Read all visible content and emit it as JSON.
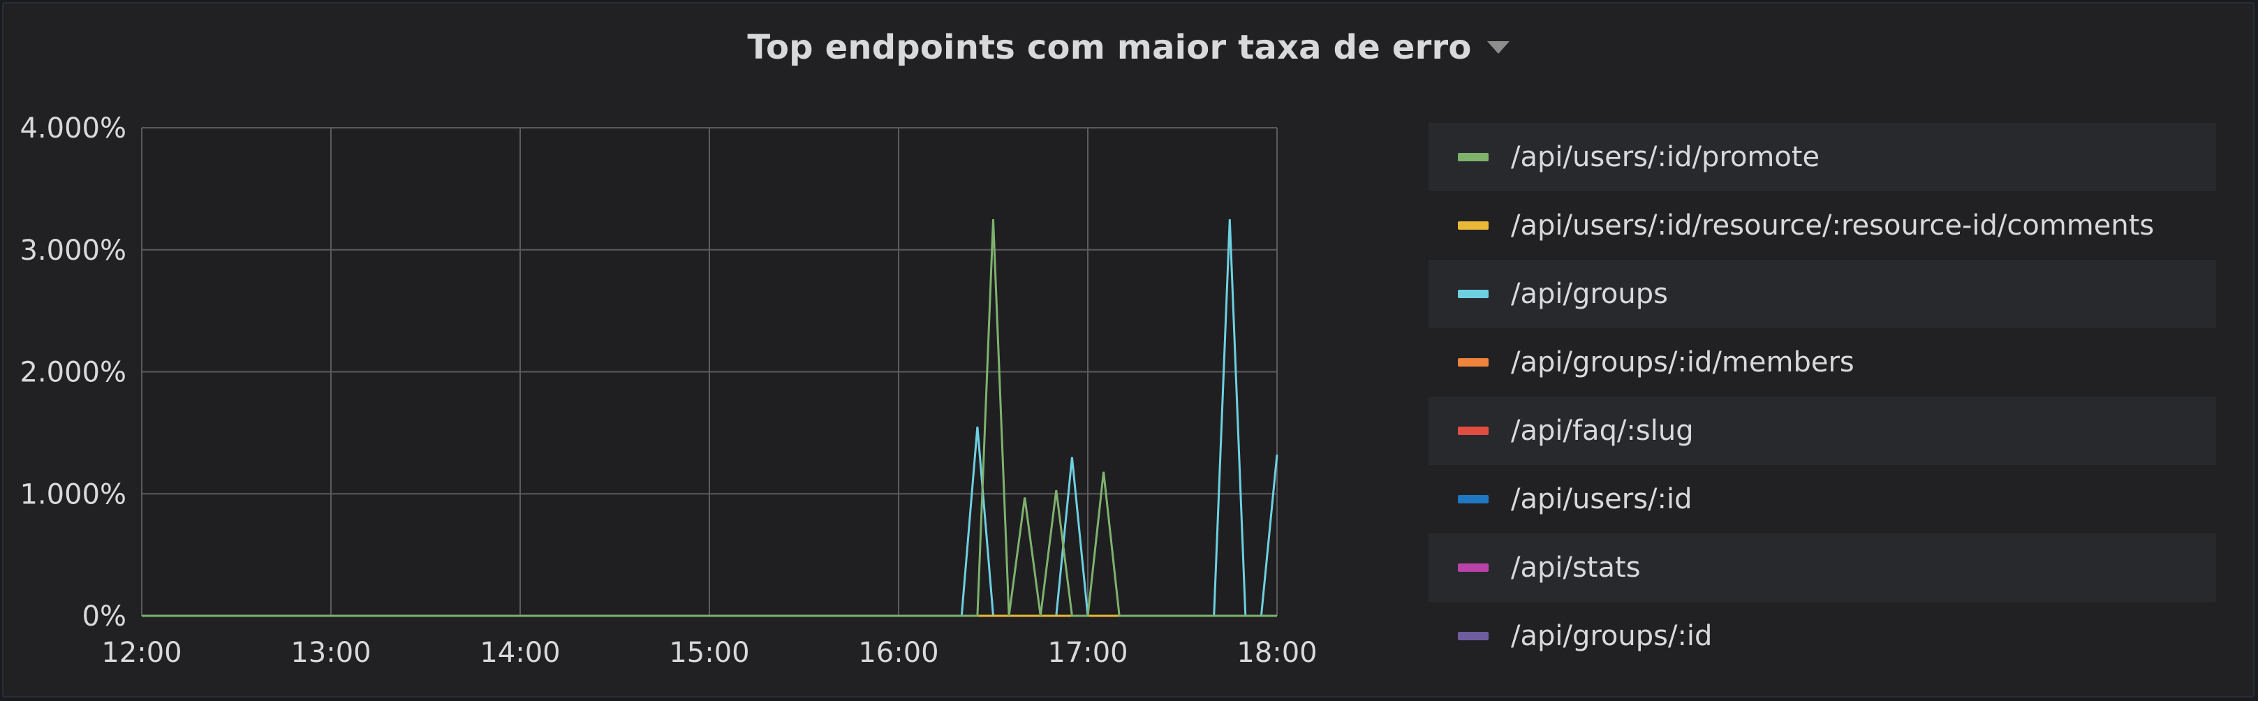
{
  "panel": {
    "title": "Top endpoints com maior taxa de erro"
  },
  "colors": {
    "background": "#212124",
    "grid": "#5a5b5f",
    "text": "#d8d9da"
  },
  "chart_data": {
    "type": "line",
    "title": "Top endpoints com maior taxa de erro",
    "xlabel": "",
    "ylabel": "",
    "x_ticks": [
      "12:00",
      "13:00",
      "14:00",
      "15:00",
      "16:00",
      "17:00",
      "18:00"
    ],
    "y_ticks": [
      "0%",
      "1.000%",
      "2.000%",
      "3.000%",
      "4.000%"
    ],
    "xlim": [
      "12:00",
      "18:00"
    ],
    "ylim": [
      0,
      4
    ],
    "y_unit": "%",
    "grid": true,
    "legend_position": "right",
    "series": [
      {
        "name": "/api/users/:id/promote",
        "color": "#7eb26d",
        "points": [
          [
            "12:00",
            0
          ],
          [
            "16:25",
            0
          ],
          [
            "16:30",
            3.25
          ],
          [
            "16:35",
            0
          ],
          [
            "16:40",
            0.97
          ],
          [
            "16:45",
            0
          ],
          [
            "16:50",
            1.03
          ],
          [
            "16:55",
            0
          ],
          [
            "17:00",
            0
          ],
          [
            "17:05",
            1.18
          ],
          [
            "17:10",
            0
          ],
          [
            "18:00",
            0
          ]
        ]
      },
      {
        "name": "/api/users/:id/resource/:resource-id/comments",
        "color": "#eab839",
        "points": [
          [
            "12:00",
            0
          ],
          [
            "18:00",
            0
          ]
        ]
      },
      {
        "name": "/api/groups",
        "color": "#6ed0e0",
        "points": [
          [
            "12:00",
            0
          ],
          [
            "16:20",
            0
          ],
          [
            "16:25",
            1.55
          ],
          [
            "16:30",
            0
          ],
          [
            "16:50",
            0
          ],
          [
            "16:55",
            1.3
          ],
          [
            "17:00",
            0
          ],
          [
            "17:40",
            0
          ],
          [
            "17:45",
            3.25
          ],
          [
            "17:50",
            0
          ],
          [
            "17:55",
            0
          ],
          [
            "18:00",
            1.32
          ]
        ]
      },
      {
        "name": "/api/groups/:id/members",
        "color": "#ef843c",
        "points": [
          [
            "12:00",
            0
          ],
          [
            "18:00",
            0
          ]
        ]
      },
      {
        "name": "/api/faq/:slug",
        "color": "#e24d42",
        "points": [
          [
            "12:00",
            0
          ],
          [
            "18:00",
            0
          ]
        ]
      },
      {
        "name": "/api/users/:id",
        "color": "#1f78c1",
        "points": [
          [
            "12:00",
            0
          ],
          [
            "18:00",
            0
          ]
        ]
      },
      {
        "name": "/api/stats",
        "color": "#ba43a9",
        "points": [
          [
            "12:00",
            0
          ],
          [
            "18:00",
            0
          ]
        ]
      },
      {
        "name": "/api/groups/:id",
        "color": "#705da0",
        "points": [
          [
            "12:00",
            0
          ],
          [
            "18:00",
            0
          ]
        ]
      }
    ]
  }
}
